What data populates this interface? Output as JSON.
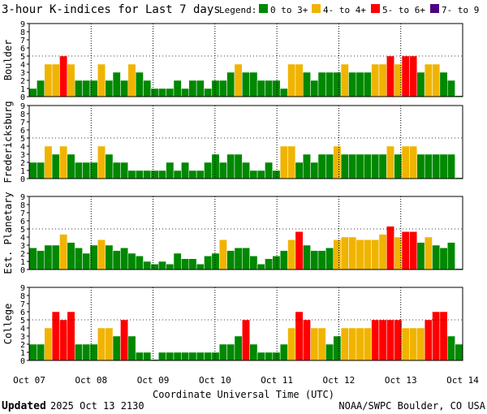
{
  "header": {
    "title": "3-hour K-indices for Last 7 days",
    "legend_label": "Legend:",
    "legend": [
      {
        "label": "0 to 3+",
        "color": "#008800"
      },
      {
        "label": "4- to 4+",
        "color": "#f0b400"
      },
      {
        "label": "5- to 6+",
        "color": "#ff0000"
      },
      {
        "label": "7- to 9",
        "color": "#4b0082"
      }
    ]
  },
  "footer": {
    "updated_label": "Updated",
    "updated_value": "2025 Oct 13 2130",
    "credit": "NOAA/SWPC Boulder, CO USA"
  },
  "chart_data": [
    {
      "type": "bar",
      "ylabel": "Boulder",
      "ylim": [
        0,
        9
      ],
      "xlabel": "Coordinate Universal Time (UTC)",
      "x_tick_labels": [
        "Oct 07",
        "Oct 08",
        "Oct 09",
        "Oct 10",
        "Oct 11",
        "Oct 12",
        "Oct 13",
        "Oct 14"
      ],
      "y_tick_labels": [
        "0",
        "1",
        "2",
        "3",
        "4",
        "5",
        "6",
        "7",
        "8",
        "9"
      ],
      "values": [
        1,
        2,
        4,
        4,
        5,
        4,
        2,
        2,
        2,
        4,
        2,
        3,
        2,
        4,
        3,
        2,
        1,
        1,
        1,
        2,
        1,
        2,
        2,
        1,
        2,
        2,
        3,
        4,
        3,
        3,
        2,
        2,
        2,
        1,
        4,
        4,
        3,
        2,
        3,
        3,
        3,
        4,
        3,
        3,
        3,
        4,
        4,
        5,
        4,
        5,
        5,
        3,
        4,
        4,
        3,
        2,
        0
      ]
    },
    {
      "type": "bar",
      "ylabel": "Fredericksburg",
      "ylim": [
        0,
        9
      ],
      "x_tick_labels": [
        "Oct 07",
        "Oct 08",
        "Oct 09",
        "Oct 10",
        "Oct 11",
        "Oct 12",
        "Oct 13",
        "Oct 14"
      ],
      "y_tick_labels": [
        "0",
        "1",
        "2",
        "3",
        "4",
        "5",
        "6",
        "7",
        "8",
        "9"
      ],
      "values": [
        2,
        2,
        4,
        3,
        4,
        3,
        2,
        2,
        2,
        4,
        3,
        2,
        2,
        1,
        1,
        1,
        1,
        1,
        2,
        1,
        2,
        1,
        1,
        2,
        3,
        2,
        3,
        3,
        2,
        1,
        1,
        2,
        1,
        4,
        4,
        2,
        3,
        2,
        3,
        3,
        4,
        3,
        3,
        3,
        3,
        3,
        3,
        4,
        3,
        4,
        4,
        3,
        3,
        3,
        3,
        3,
        0
      ]
    },
    {
      "type": "bar",
      "ylabel": "Est. Planetary",
      "ylim": [
        0,
        9
      ],
      "x_tick_labels": [
        "Oct 07",
        "Oct 08",
        "Oct 09",
        "Oct 10",
        "Oct 11",
        "Oct 12",
        "Oct 13",
        "Oct 14"
      ],
      "y_tick_labels": [
        "0",
        "1",
        "2",
        "3",
        "4",
        "5",
        "6",
        "7",
        "8",
        "9"
      ],
      "values": [
        2.67,
        2.33,
        3,
        3,
        4.33,
        3.33,
        2.67,
        2,
        3,
        3.67,
        3,
        2.33,
        2.67,
        2,
        1.67,
        1,
        0.67,
        1,
        0.67,
        2,
        1.33,
        1.33,
        0.67,
        1.67,
        2,
        3.67,
        2.33,
        2.67,
        2.67,
        1.67,
        0.67,
        1.33,
        1.67,
        2.33,
        3.67,
        4.67,
        3,
        2.33,
        2.33,
        2.67,
        3.67,
        4,
        4,
        3.67,
        3.67,
        3.67,
        4.33,
        5.33,
        4,
        4.67,
        4.67,
        3.33,
        4,
        3,
        2.67,
        3.33,
        0
      ]
    },
    {
      "type": "bar",
      "ylabel": "College",
      "ylim": [
        0,
        9
      ],
      "x_tick_labels": [
        "Oct 07",
        "Oct 08",
        "Oct 09",
        "Oct 10",
        "Oct 11",
        "Oct 12",
        "Oct 13",
        "Oct 14"
      ],
      "y_tick_labels": [
        "0",
        "1",
        "2",
        "3",
        "4",
        "5",
        "6",
        "7",
        "8",
        "9"
      ],
      "values": [
        2,
        2,
        4,
        6,
        5,
        6,
        2,
        2,
        2,
        4,
        4,
        3,
        5,
        3,
        1,
        1,
        0,
        1,
        1,
        1,
        1,
        1,
        1,
        1,
        1,
        2,
        2,
        3,
        5,
        2,
        1,
        1,
        1,
        2,
        4,
        6,
        5,
        4,
        4,
        2,
        3,
        4,
        4,
        4,
        4,
        5,
        5,
        5,
        5,
        4,
        4,
        4,
        5,
        6,
        6,
        3,
        2
      ]
    }
  ]
}
